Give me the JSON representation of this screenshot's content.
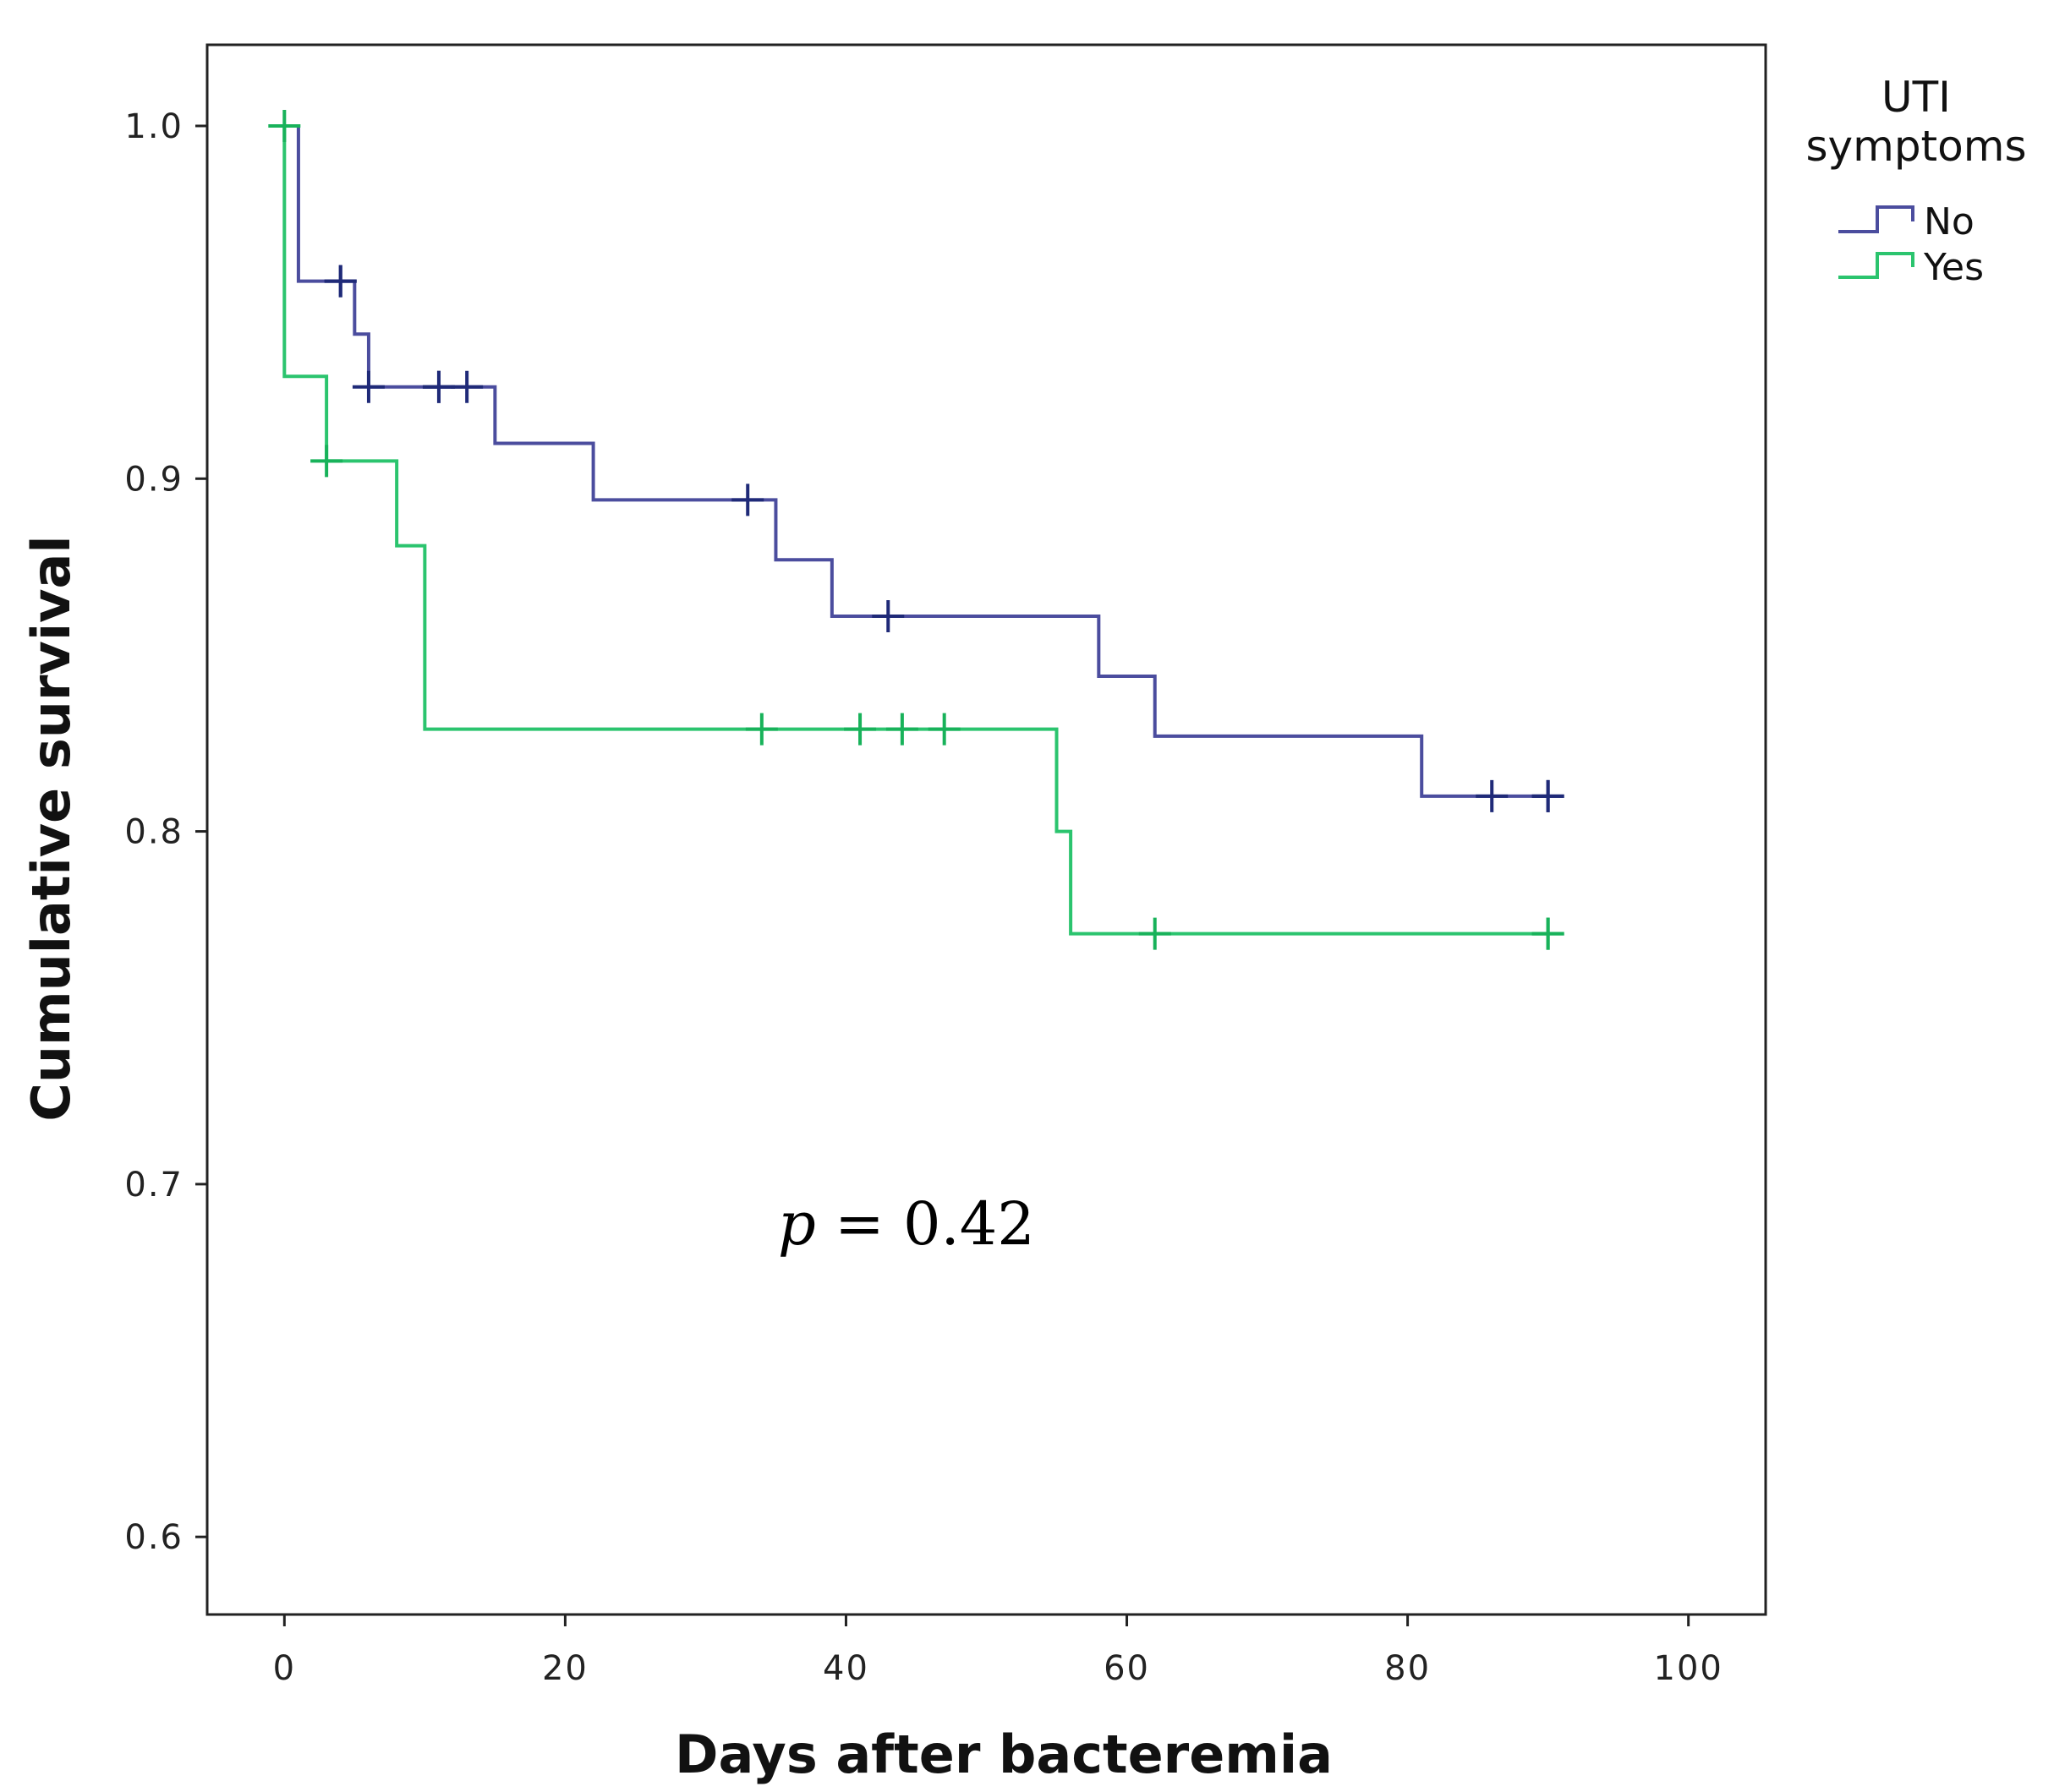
{
  "chart_data": {
    "type": "line",
    "subtype": "kaplan-meier step survival",
    "xlabel": "Days after bacteremia",
    "ylabel": "Cumulative survival",
    "xlim": [
      -5.5,
      105.5
    ],
    "ylim": [
      0.578,
      1.023
    ],
    "xticks": [
      0,
      20,
      40,
      60,
      80,
      100
    ],
    "xtick_labels": [
      "0",
      "20",
      "40",
      "60",
      "80",
      "100"
    ],
    "yticks": [
      0.6,
      0.7,
      0.8,
      0.9,
      1.0
    ],
    "ytick_labels": [
      "0.6",
      "0.7",
      "0.8",
      "0.9",
      "1.0"
    ],
    "grid": false,
    "legend": {
      "title_lines": [
        "UTI",
        "symptoms"
      ],
      "position": "outside-top-right"
    },
    "annotation": {
      "italic": "p",
      "rest": " = 0.42"
    },
    "series": [
      {
        "name": "No",
        "color": "#4b4d9e",
        "censor_color": "#1f2a78",
        "steps": [
          [
            0,
            1.0
          ],
          [
            1,
            0.956
          ],
          [
            5,
            0.941
          ],
          [
            6,
            0.926
          ],
          [
            15,
            0.91
          ],
          [
            22,
            0.894
          ],
          [
            35,
            0.877
          ],
          [
            39,
            0.861
          ],
          [
            58,
            0.844
          ],
          [
            62,
            0.827
          ],
          [
            81,
            0.81
          ],
          [
            90,
            0.81
          ]
        ],
        "censored": [
          [
            4,
            0.956
          ],
          [
            4,
            0.956
          ],
          [
            6,
            0.926
          ],
          [
            11,
            0.926
          ],
          [
            11,
            0.926
          ],
          [
            13,
            0.926
          ],
          [
            33,
            0.894
          ],
          [
            43,
            0.861
          ],
          [
            86,
            0.81
          ],
          [
            90,
            0.81
          ],
          [
            90,
            0.81
          ]
        ]
      },
      {
        "name": "Yes",
        "color": "#2bc46e",
        "censor_color": "#18b25a",
        "steps": [
          [
            0,
            1.0
          ],
          [
            0,
            0.929
          ],
          [
            3,
            0.905
          ],
          [
            8,
            0.881
          ],
          [
            10,
            0.829
          ],
          [
            55,
            0.8
          ],
          [
            56,
            0.771
          ],
          [
            90,
            0.771
          ]
        ],
        "censored": [
          [
            0,
            1.0
          ],
          [
            3,
            0.905
          ],
          [
            34,
            0.829
          ],
          [
            41,
            0.829
          ],
          [
            44,
            0.829
          ],
          [
            47,
            0.829
          ],
          [
            62,
            0.771
          ],
          [
            90,
            0.771
          ],
          [
            90,
            0.771
          ]
        ]
      }
    ]
  }
}
